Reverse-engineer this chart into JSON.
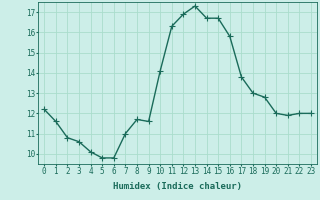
{
  "x": [
    0,
    1,
    2,
    3,
    4,
    5,
    6,
    7,
    8,
    9,
    10,
    11,
    12,
    13,
    14,
    15,
    16,
    17,
    18,
    19,
    20,
    21,
    22,
    23
  ],
  "y": [
    12.2,
    11.6,
    10.8,
    10.6,
    10.1,
    9.8,
    9.8,
    11.0,
    11.7,
    11.6,
    14.1,
    16.3,
    16.9,
    17.3,
    16.7,
    16.7,
    15.8,
    13.8,
    13.0,
    12.8,
    12.0,
    11.9,
    12.0,
    12.0
  ],
  "line_color": "#1a6b5a",
  "marker": "D",
  "marker_size": 2.2,
  "bg_color": "#cceee8",
  "grid_color": "#aaddcc",
  "xlabel": "Humidex (Indice chaleur)",
  "xlim": [
    -0.5,
    23.5
  ],
  "ylim": [
    9.5,
    17.5
  ],
  "yticks": [
    10,
    11,
    12,
    13,
    14,
    15,
    16,
    17
  ],
  "xticks": [
    0,
    1,
    2,
    3,
    4,
    5,
    6,
    7,
    8,
    9,
    10,
    11,
    12,
    13,
    14,
    15,
    16,
    17,
    18,
    19,
    20,
    21,
    22,
    23
  ],
  "tick_label_fontsize": 5.5,
  "xlabel_fontsize": 6.5,
  "line_width": 1.0
}
